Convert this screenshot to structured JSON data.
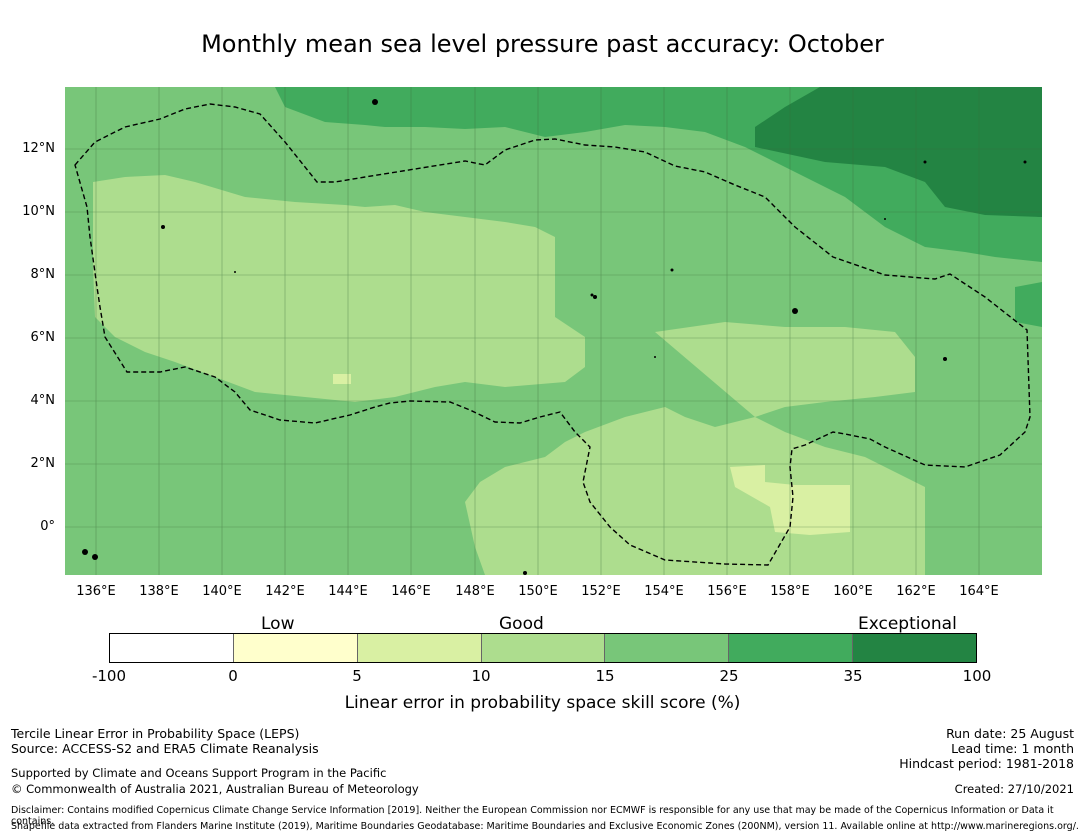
{
  "title": "Monthly mean sea level pressure past accuracy: October",
  "map": {
    "lat_labels": [
      "12°N",
      "10°N",
      "8°N",
      "6°N",
      "4°N",
      "2°N",
      "0°"
    ],
    "lon_labels": [
      "136°E",
      "138°E",
      "140°E",
      "142°E",
      "144°E",
      "146°E",
      "148°E",
      "150°E",
      "152°E",
      "154°E",
      "156°E",
      "158°E",
      "160°E",
      "162°E",
      "164°E"
    ]
  },
  "colorbar": {
    "categories": [
      "Low",
      "Good",
      "Exceptional"
    ],
    "ticks": [
      "-100",
      "0",
      "5",
      "10",
      "15",
      "25",
      "35",
      "100"
    ],
    "colors": [
      "#ffffff",
      "#ffffcc",
      "#d9f0a3",
      "#addd8e",
      "#78c679",
      "#41ab5d",
      "#238443"
    ],
    "title": "Linear error in probability space skill score (%)"
  },
  "footer": {
    "left_line1": "Tercile Linear Error in Probability Space (LEPS)",
    "left_line2": "Source: ACCESS-S2 and ERA5 Climate Reanalysis",
    "left_line3": "Supported by Climate and Oceans Support Program in the Pacific",
    "left_line4": "© Commonwealth of Australia 2021, Australian Bureau of Meteorology",
    "right_line1": "Run date: 25 August",
    "right_line2": "Lead time: 1 month",
    "right_line3": "Hindcast period: 1981-2018",
    "right_line4": "Created: 27/10/2021",
    "disclaimer1": "Disclaimer: Contains modified Copernicus Climate Change Service Information [2019]. Neither the European Commission nor ECMWF is responsible for any use that may be made of the Copernicus Information or Data it contains.",
    "disclaimer2": "Shapefile data extracted from Flanders Marine Institute (2019), Maritime Boundaries Geodatabase: Maritime Boundaries and Exclusive Economic Zones (200NM), version 11. Available online at http://www.marineregions.org/."
  }
}
